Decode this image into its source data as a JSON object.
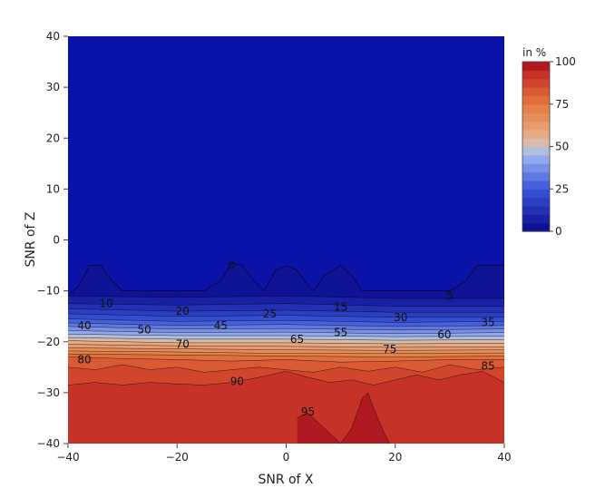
{
  "chart_data": {
    "type": "contour",
    "title": "",
    "xlabel": "SNR of X",
    "ylabel": "SNR of Z",
    "xlim": [
      -40,
      40
    ],
    "ylim": [
      -40,
      40
    ],
    "x_ticks": [
      -40,
      -20,
      0,
      20,
      40
    ],
    "y_ticks": [
      40,
      30,
      20,
      10,
      0,
      -10,
      -20,
      -30,
      -40
    ],
    "x_tick_labels": [
      "−40",
      "−20",
      "0",
      "20",
      "40"
    ],
    "y_tick_labels": [
      "40",
      "30",
      "20",
      "10",
      "0",
      "−10",
      "−20",
      "−30",
      "−40"
    ],
    "colorbar": {
      "title": "in %",
      "ticks": [
        0,
        25,
        50,
        75,
        100
      ],
      "tick_labels": [
        "0",
        "25",
        "50",
        "75",
        "100"
      ],
      "range": [
        0,
        100
      ]
    },
    "colorscale": [
      [
        0.0,
        "#0a0a8e"
      ],
      [
        0.25,
        "#3a55d8"
      ],
      [
        0.45,
        "#9db5f0"
      ],
      [
        0.5,
        "#c8c8c8"
      ],
      [
        0.55,
        "#e8b08a"
      ],
      [
        0.75,
        "#e37a3e"
      ],
      [
        0.9,
        "#cf3b2a"
      ],
      [
        1.0,
        "#a50e1e"
      ]
    ],
    "contour_levels": [
      0,
      5,
      10,
      15,
      20,
      25,
      30,
      35,
      40,
      45,
      50,
      55,
      60,
      65,
      70,
      75,
      80,
      85,
      90,
      95,
      100
    ],
    "contours": [
      {
        "level": 0,
        "points": [
          [
            -40,
            -11
          ],
          [
            -38,
            -9
          ],
          [
            -36,
            -5
          ],
          [
            -34,
            -5
          ],
          [
            -32,
            -8
          ],
          [
            -30,
            -10
          ],
          [
            -25,
            -10
          ],
          [
            -15,
            -10
          ],
          [
            -12,
            -8
          ],
          [
            -10,
            -4.5
          ],
          [
            -8,
            -5
          ],
          [
            -6,
            -8
          ],
          [
            -4,
            -10
          ],
          [
            -2,
            -6
          ],
          [
            0,
            -5
          ],
          [
            2,
            -6
          ],
          [
            4,
            -9
          ],
          [
            5,
            -10
          ],
          [
            7,
            -7
          ],
          [
            10,
            -5
          ],
          [
            12,
            -7
          ],
          [
            14,
            -10
          ],
          [
            20,
            -10
          ],
          [
            30,
            -10
          ],
          [
            33,
            -8
          ],
          [
            35,
            -5
          ],
          [
            40,
            -5
          ]
        ]
      },
      {
        "level": 5,
        "points": [
          [
            -40,
            -11
          ],
          [
            -20,
            -11.3
          ],
          [
            0,
            -11
          ],
          [
            20,
            -11.5
          ],
          [
            40,
            -11.5
          ]
        ]
      },
      {
        "level": 10,
        "points": [
          [
            -40,
            -12.5
          ],
          [
            -20,
            -12.8
          ],
          [
            0,
            -12.5
          ],
          [
            20,
            -13
          ],
          [
            40,
            -13
          ]
        ]
      },
      {
        "level": 15,
        "points": [
          [
            -40,
            -13.5
          ],
          [
            -20,
            -14
          ],
          [
            0,
            -13.8
          ],
          [
            20,
            -14.2
          ],
          [
            40,
            -14.2
          ]
        ]
      },
      {
        "level": 20,
        "points": [
          [
            -40,
            -14.5
          ],
          [
            -20,
            -15
          ],
          [
            0,
            -14.8
          ],
          [
            20,
            -15.2
          ],
          [
            40,
            -15.2
          ]
        ]
      },
      {
        "level": 25,
        "points": [
          [
            -40,
            -15.5
          ],
          [
            -20,
            -16
          ],
          [
            0,
            -15.8
          ],
          [
            20,
            -16.2
          ],
          [
            40,
            -16
          ]
        ]
      },
      {
        "level": 30,
        "points": [
          [
            -40,
            -16.3
          ],
          [
            -20,
            -16.8
          ],
          [
            0,
            -16.6
          ],
          [
            20,
            -17
          ],
          [
            40,
            -16.8
          ]
        ]
      },
      {
        "level": 35,
        "points": [
          [
            -40,
            -17
          ],
          [
            -20,
            -17.5
          ],
          [
            0,
            -17.4
          ],
          [
            20,
            -17.7
          ],
          [
            40,
            -17.5
          ]
        ]
      },
      {
        "level": 40,
        "points": [
          [
            -40,
            -17.8
          ],
          [
            -20,
            -18.2
          ],
          [
            0,
            -18.1
          ],
          [
            20,
            -18.4
          ],
          [
            40,
            -18.2
          ]
        ]
      },
      {
        "level": 45,
        "points": [
          [
            -40,
            -18.5
          ],
          [
            -20,
            -18.8
          ],
          [
            0,
            -18.8
          ],
          [
            20,
            -19
          ],
          [
            40,
            -18.9
          ]
        ]
      },
      {
        "level": 50,
        "points": [
          [
            -40,
            -19.2
          ],
          [
            -20,
            -19.5
          ],
          [
            0,
            -19.5
          ],
          [
            20,
            -19.7
          ],
          [
            40,
            -19.6
          ]
        ]
      },
      {
        "level": 55,
        "points": [
          [
            -40,
            -19.8
          ],
          [
            -20,
            -20.2
          ],
          [
            0,
            -20.2
          ],
          [
            20,
            -20.4
          ],
          [
            40,
            -20.3
          ]
        ]
      },
      {
        "level": 60,
        "points": [
          [
            -40,
            -20.5
          ],
          [
            -20,
            -20.8
          ],
          [
            0,
            -20.9
          ],
          [
            20,
            -21.1
          ],
          [
            40,
            -21
          ]
        ]
      },
      {
        "level": 65,
        "points": [
          [
            -40,
            -21.2
          ],
          [
            -20,
            -21.4
          ],
          [
            0,
            -21.6
          ],
          [
            20,
            -21.7
          ],
          [
            40,
            -21.6
          ]
        ]
      },
      {
        "level": 70,
        "points": [
          [
            -40,
            -21.8
          ],
          [
            -20,
            -22
          ],
          [
            0,
            -22.3
          ],
          [
            20,
            -22.3
          ],
          [
            40,
            -22.2
          ]
        ]
      },
      {
        "level": 75,
        "points": [
          [
            -40,
            -22.4
          ],
          [
            -20,
            -22.6
          ],
          [
            0,
            -22.8
          ],
          [
            20,
            -23
          ],
          [
            40,
            -22.8
          ]
        ]
      },
      {
        "level": 80,
        "points": [
          [
            -40,
            -23
          ],
          [
            -30,
            -23.3
          ],
          [
            -20,
            -23.5
          ],
          [
            -10,
            -23.8
          ],
          [
            0,
            -23.5
          ],
          [
            10,
            -24
          ],
          [
            20,
            -23.8
          ],
          [
            30,
            -23.5
          ],
          [
            40,
            -23.5
          ]
        ]
      },
      {
        "level": 85,
        "points": [
          [
            -40,
            -25
          ],
          [
            -35,
            -25.5
          ],
          [
            -30,
            -24.5
          ],
          [
            -25,
            -25.5
          ],
          [
            -20,
            -25
          ],
          [
            -15,
            -26
          ],
          [
            -10,
            -25.5
          ],
          [
            -5,
            -25
          ],
          [
            0,
            -25.5
          ],
          [
            5,
            -26
          ],
          [
            10,
            -25
          ],
          [
            15,
            -25.8
          ],
          [
            20,
            -25
          ],
          [
            25,
            -26
          ],
          [
            30,
            -24.5
          ],
          [
            35,
            -25.5
          ],
          [
            40,
            -25
          ]
        ]
      },
      {
        "level": 90,
        "points": [
          [
            -40,
            -28.5
          ],
          [
            -35,
            -28
          ],
          [
            -30,
            -28.5
          ],
          [
            -25,
            -28
          ],
          [
            -20,
            -28.3
          ],
          [
            -15,
            -28.5
          ],
          [
            -10,
            -28
          ],
          [
            -5,
            -27
          ],
          [
            0,
            -25.8
          ],
          [
            4,
            -27
          ],
          [
            8,
            -28
          ],
          [
            12,
            -27.5
          ],
          [
            16,
            -28.5
          ],
          [
            20,
            -27.5
          ],
          [
            24,
            -26.5
          ],
          [
            28,
            -27.5
          ],
          [
            32,
            -26.5
          ],
          [
            36,
            -25.8
          ],
          [
            40,
            -28
          ]
        ]
      },
      {
        "level": 95,
        "points": [
          [
            2,
            -35
          ],
          [
            4,
            -34
          ],
          [
            6,
            -36
          ],
          [
            8,
            -38
          ],
          [
            10,
            -40
          ],
          [
            12,
            -37
          ],
          [
            14,
            -31
          ],
          [
            15,
            -30
          ],
          [
            16,
            -33
          ],
          [
            18,
            -38
          ],
          [
            19,
            -40
          ]
        ]
      }
    ],
    "contour_label_positions": [
      {
        "text": "0",
        "x": -10,
        "y": -5
      },
      {
        "text": "5",
        "x": 30,
        "y": -11
      },
      {
        "text": "10",
        "x": -33,
        "y": -12.5
      },
      {
        "text": "15",
        "x": 10,
        "y": -13.2
      },
      {
        "text": "20",
        "x": -19,
        "y": -14
      },
      {
        "text": "25",
        "x": -3,
        "y": -14.5
      },
      {
        "text": "30",
        "x": 21,
        "y": -15.2
      },
      {
        "text": "35",
        "x": 37,
        "y": -16.2
      },
      {
        "text": "40",
        "x": -37,
        "y": -16.8
      },
      {
        "text": "45",
        "x": -12,
        "y": -16.8
      },
      {
        "text": "50",
        "x": -26,
        "y": -17.6
      },
      {
        "text": "55",
        "x": 10,
        "y": -18.2
      },
      {
        "text": "60",
        "x": 29,
        "y": -18.6
      },
      {
        "text": "65",
        "x": 2,
        "y": -19.5
      },
      {
        "text": "70",
        "x": -19,
        "y": -20.5
      },
      {
        "text": "75",
        "x": 19,
        "y": -21.5
      },
      {
        "text": "80",
        "x": -37,
        "y": -23.5
      },
      {
        "text": "85",
        "x": 37,
        "y": -24.8
      },
      {
        "text": "90",
        "x": -9,
        "y": -27.8
      },
      {
        "text": "95",
        "x": 4,
        "y": -33.8
      }
    ]
  }
}
